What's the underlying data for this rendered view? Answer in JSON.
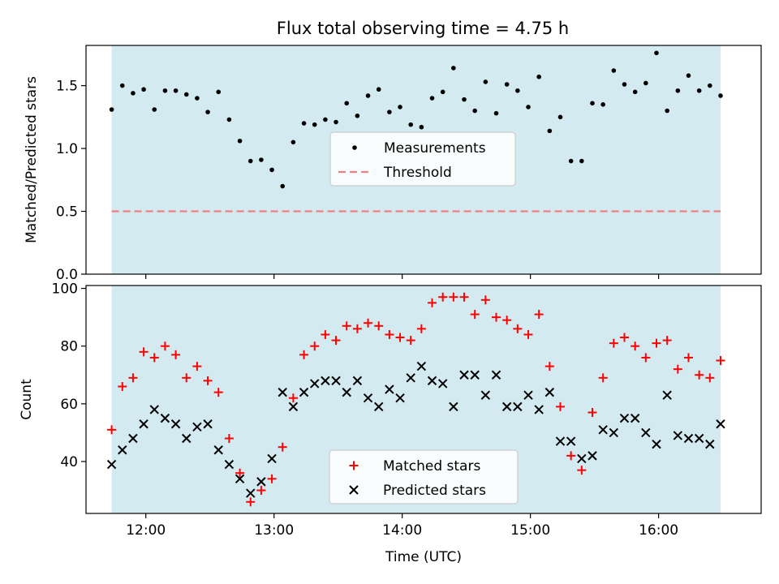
{
  "title": "Flux total observing time = 4.75 h",
  "chart_data": [
    {
      "type": "scatter",
      "panel": "top",
      "ylabel": "Matched/Predicted stars",
      "xlabel": "",
      "ylim": [
        0,
        1.82
      ],
      "xlim": [
        "11:32",
        "16:48"
      ],
      "yticks": [
        0.0,
        0.5,
        1.0,
        1.5
      ],
      "ytick_labels": [
        "0.0",
        "0.5",
        "1.0",
        "1.5"
      ],
      "observing_window": [
        "11:44",
        "16:29"
      ],
      "threshold": 0.5,
      "legend": [
        "Measurements",
        "Threshold"
      ],
      "legend_position": "center",
      "colors": {
        "measurements": "#000000",
        "threshold": "#f08080",
        "window": "#add8e6"
      },
      "series": [
        {
          "name": "Measurements",
          "x": [
            "11:44",
            "11:49",
            "11:54",
            "11:59",
            "12:04",
            "12:09",
            "12:14",
            "12:19",
            "12:24",
            "12:29",
            "12:34",
            "12:39",
            "12:44",
            "12:49",
            "12:54",
            "12:59",
            "13:04",
            "13:09",
            "13:14",
            "13:19",
            "13:24",
            "13:29",
            "13:34",
            "13:39",
            "13:44",
            "13:49",
            "13:54",
            "13:59",
            "14:04",
            "14:09",
            "14:14",
            "14:19",
            "14:24",
            "14:29",
            "14:34",
            "14:39",
            "14:44",
            "14:49",
            "14:54",
            "14:59",
            "15:04",
            "15:09",
            "15:14",
            "15:19",
            "15:24",
            "15:29",
            "15:34",
            "15:39",
            "15:44",
            "15:49",
            "15:54",
            "15:59",
            "16:04",
            "16:09",
            "16:14",
            "16:19",
            "16:24",
            "16:29"
          ],
          "y": [
            1.31,
            1.5,
            1.44,
            1.47,
            1.31,
            1.46,
            1.46,
            1.43,
            1.4,
            1.29,
            1.45,
            1.23,
            1.06,
            0.9,
            0.91,
            0.83,
            0.7,
            1.05,
            1.2,
            1.19,
            1.23,
            1.21,
            1.36,
            1.26,
            1.42,
            1.47,
            1.29,
            1.33,
            1.19,
            1.17,
            1.4,
            1.45,
            1.64,
            1.39,
            1.3,
            1.53,
            1.28,
            1.51,
            1.46,
            1.33,
            1.57,
            1.14,
            1.25,
            0.9,
            0.9,
            1.36,
            1.35,
            1.62,
            1.51,
            1.45,
            1.52,
            1.76,
            1.3,
            1.46,
            1.58,
            1.46,
            1.5,
            1.42
          ]
        }
      ]
    },
    {
      "type": "scatter",
      "panel": "bottom",
      "ylabel": "Count",
      "xlabel": "Time (UTC)",
      "ylim": [
        22,
        101
      ],
      "xlim": [
        "11:32",
        "16:48"
      ],
      "yticks": [
        40,
        60,
        80,
        100
      ],
      "ytick_labels": [
        "40",
        "60",
        "80",
        "100"
      ],
      "xtick_labels": [
        "12:00",
        "13:00",
        "14:00",
        "15:00",
        "16:00"
      ],
      "observing_window": [
        "11:44",
        "16:29"
      ],
      "legend": [
        "Matched stars",
        "Predicted stars"
      ],
      "legend_position": "lower center",
      "colors": {
        "matched": "#ff0000",
        "predicted": "#000000",
        "window": "#add8e6"
      },
      "series": [
        {
          "name": "Matched stars",
          "x": [
            "11:44",
            "11:49",
            "11:54",
            "11:59",
            "12:04",
            "12:09",
            "12:14",
            "12:19",
            "12:24",
            "12:29",
            "12:34",
            "12:39",
            "12:44",
            "12:49",
            "12:54",
            "12:59",
            "13:04",
            "13:09",
            "13:14",
            "13:19",
            "13:24",
            "13:29",
            "13:34",
            "13:39",
            "13:44",
            "13:49",
            "13:54",
            "13:59",
            "14:04",
            "14:09",
            "14:14",
            "14:19",
            "14:24",
            "14:29",
            "14:34",
            "14:39",
            "14:44",
            "14:49",
            "14:54",
            "14:59",
            "15:04",
            "15:09",
            "15:14",
            "15:19",
            "15:24",
            "15:29",
            "15:34",
            "15:39",
            "15:44",
            "15:49",
            "15:54",
            "15:59",
            "16:04",
            "16:09",
            "16:14",
            "16:19",
            "16:24",
            "16:29"
          ],
          "y": [
            51,
            66,
            69,
            78,
            76,
            80,
            77,
            69,
            73,
            68,
            64,
            48,
            36,
            26,
            30,
            34,
            45,
            62,
            77,
            80,
            84,
            82,
            87,
            86,
            88,
            87,
            84,
            83,
            82,
            86,
            95,
            97,
            97,
            97,
            91,
            96,
            90,
            89,
            86,
            84,
            91,
            73,
            59,
            42,
            37,
            57,
            69,
            81,
            83,
            80,
            76,
            81,
            82,
            72,
            76,
            70,
            69,
            75
          ]
        },
        {
          "name": "Predicted stars",
          "x": [
            "11:44",
            "11:49",
            "11:54",
            "11:59",
            "12:04",
            "12:09",
            "12:14",
            "12:19",
            "12:24",
            "12:29",
            "12:34",
            "12:39",
            "12:44",
            "12:49",
            "12:54",
            "12:59",
            "13:04",
            "13:09",
            "13:14",
            "13:19",
            "13:24",
            "13:29",
            "13:34",
            "13:39",
            "13:44",
            "13:49",
            "13:54",
            "13:59",
            "14:04",
            "14:09",
            "14:14",
            "14:19",
            "14:24",
            "14:29",
            "14:34",
            "14:39",
            "14:44",
            "14:49",
            "14:54",
            "14:59",
            "15:04",
            "15:09",
            "15:14",
            "15:19",
            "15:24",
            "15:29",
            "15:34",
            "15:39",
            "15:44",
            "15:49",
            "15:54",
            "15:59",
            "16:04",
            "16:09",
            "16:14",
            "16:19",
            "16:24",
            "16:29"
          ],
          "y": [
            39,
            44,
            48,
            53,
            58,
            55,
            53,
            48,
            52,
            53,
            44,
            39,
            34,
            29,
            33,
            41,
            64,
            59,
            64,
            67,
            68,
            68,
            64,
            68,
            62,
            59,
            65,
            62,
            69,
            73,
            68,
            67,
            59,
            70,
            70,
            63,
            70,
            59,
            59,
            63,
            58,
            64,
            47,
            47,
            41,
            42,
            51,
            50,
            55,
            55,
            50,
            46,
            63,
            49,
            48,
            48,
            46,
            53
          ]
        }
      ]
    }
  ]
}
